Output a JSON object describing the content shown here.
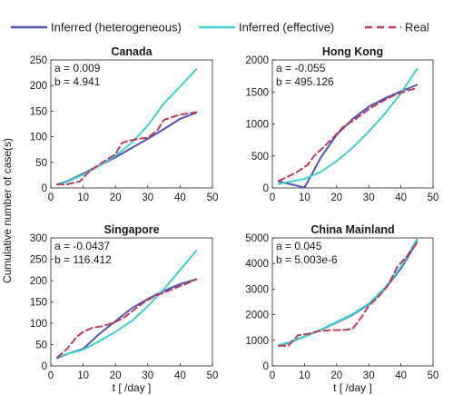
{
  "chart_data": {
    "type": "line",
    "legend": {
      "placement": "top",
      "entries": [
        {
          "name": "Inferred (heterogeneous)",
          "color": "#5055b4",
          "dash": "solid"
        },
        {
          "name": "Inferred (effective)",
          "color": "#3fd1cf",
          "dash": "solid"
        },
        {
          "name": "Real",
          "color": "#bd3b5c",
          "dash": "dashed"
        }
      ]
    },
    "shared_ylabel": "Cumulative number of case(s)",
    "panels": [
      {
        "title": "Canada",
        "param_a": "a = 0.009",
        "param_b": "b = 4.941",
        "xlabel": "",
        "xlim": [
          0,
          50
        ],
        "ylim": [
          0,
          250
        ],
        "xticks": [
          0,
          10,
          20,
          30,
          40,
          50
        ],
        "yticks": [
          0,
          50,
          100,
          150,
          200,
          250
        ],
        "series": [
          {
            "name": "Inferred (heterogeneous)",
            "x": [
              2,
              5,
              10,
              15,
              20,
              25,
              30,
              35,
              40,
              45
            ],
            "y": [
              7,
              13,
              28,
              44,
              60,
              78,
              96,
              115,
              135,
              147
            ]
          },
          {
            "name": "Inferred (effective)",
            "x": [
              2,
              5,
              10,
              15,
              20,
              25,
              30,
              35,
              40,
              45
            ],
            "y": [
              6,
              12,
              26,
              43,
              63,
              88,
              122,
              165,
              198,
              232
            ]
          },
          {
            "name": "Real",
            "x": [
              2,
              5,
              9,
              12,
              16,
              20,
              22,
              24,
              27,
              30,
              33,
              35,
              40,
              45
            ],
            "y": [
              7,
              7,
              13,
              33,
              50,
              66,
              88,
              92,
              96,
              98,
              113,
              133,
              143,
              148
            ]
          }
        ]
      },
      {
        "title": "Hong Kong",
        "param_a": "a = -0.055",
        "param_b": "b = 495.126",
        "xlabel": "",
        "xlim": [
          0,
          50
        ],
        "ylim": [
          0,
          2000
        ],
        "xticks": [
          0,
          10,
          20,
          30,
          40,
          50
        ],
        "yticks": [
          0,
          500,
          1000,
          1500,
          2000
        ],
        "series": [
          {
            "name": "Inferred (heterogeneous)",
            "x": [
              2,
              6,
              10,
              13,
              15,
              20,
              25,
              30,
              35,
              40,
              45
            ],
            "y": [
              100,
              55,
              5,
              280,
              470,
              830,
              1080,
              1270,
              1400,
              1510,
              1610
            ]
          },
          {
            "name": "Inferred (effective)",
            "x": [
              2,
              5,
              10,
              15,
              20,
              25,
              30,
              35,
              40,
              45
            ],
            "y": [
              60,
              95,
              140,
              250,
              420,
              630,
              880,
              1160,
              1480,
              1860
            ]
          },
          {
            "name": "Real",
            "x": [
              2,
              5,
              8,
              11,
              13,
              16,
              19,
              22,
              26,
              30,
              34,
              38,
              42,
              45
            ],
            "y": [
              110,
              180,
              260,
              360,
              500,
              640,
              790,
              950,
              1080,
              1230,
              1350,
              1450,
              1520,
              1560
            ]
          }
        ]
      },
      {
        "title": "Singapore",
        "param_a": "a = -0.0437",
        "param_b": "b = 116.412",
        "xlabel": "t [ /day ]",
        "xlim": [
          0,
          50
        ],
        "ylim": [
          0,
          300
        ],
        "xticks": [
          0,
          10,
          20,
          30,
          40,
          50
        ],
        "yticks": [
          0,
          50,
          100,
          150,
          200,
          250,
          300
        ],
        "series": [
          {
            "name": "Inferred (heterogeneous)",
            "x": [
              2,
              5,
              10,
              15,
              20,
              25,
              30,
              35,
              40,
              45
            ],
            "y": [
              18,
              28,
              40,
              75,
              105,
              135,
              157,
              176,
              192,
              203
            ]
          },
          {
            "name": "Inferred (effective)",
            "x": [
              2,
              5,
              10,
              15,
              20,
              25,
              30,
              35,
              40,
              45
            ],
            "y": [
              20,
              28,
              38,
              58,
              80,
              105,
              140,
              180,
              225,
              270
            ]
          },
          {
            "name": "Real",
            "x": [
              2,
              5,
              8,
              10,
              13,
              16,
              20,
              23,
              26,
              29,
              32,
              35,
              39,
              42,
              45
            ],
            "y": [
              20,
              40,
              68,
              80,
              90,
              93,
              103,
              115,
              133,
              150,
              163,
              172,
              184,
              193,
              203
            ]
          }
        ]
      },
      {
        "title": "China Mainland",
        "param_a": "a = 0.045",
        "param_b": "b = 5.003e-6",
        "xlabel": "t [ /day ]",
        "xlim": [
          0,
          50
        ],
        "ylim": [
          0,
          5000
        ],
        "xticks": [
          0,
          10,
          20,
          30,
          40,
          50
        ],
        "yticks": [
          0,
          1000,
          2000,
          3000,
          4000,
          5000
        ],
        "series": [
          {
            "name": "Inferred (heterogeneous)",
            "x": [
              2,
              5,
              10,
              15,
              20,
              25,
              30,
              35,
              40,
              45
            ],
            "y": [
              800,
              900,
              1150,
              1400,
              1700,
              2000,
              2400,
              3000,
              3800,
              4850
            ]
          },
          {
            "name": "Inferred (effective)",
            "x": [
              2,
              5,
              10,
              15,
              20,
              25,
              30,
              35,
              40,
              45
            ],
            "y": [
              810,
              920,
              1160,
              1410,
              1720,
              2030,
              2430,
              3050,
              3870,
              4950
            ]
          },
          {
            "name": "Real",
            "x": [
              2,
              5,
              8,
              11,
              14,
              18,
              22,
              25,
              28,
              30,
              33,
              36,
              39,
              42,
              45
            ],
            "y": [
              790,
              790,
              1200,
              1250,
              1350,
              1400,
              1400,
              1450,
              1950,
              2350,
              2700,
              3150,
              3900,
              4300,
              4800
            ]
          }
        ]
      }
    ]
  }
}
